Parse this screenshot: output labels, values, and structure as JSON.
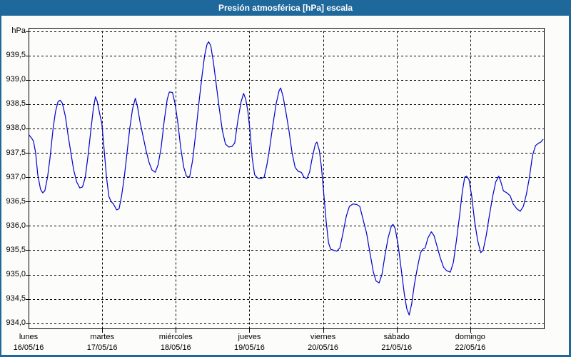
{
  "window": {
    "title": "Presión atmosférica [hPa] escala"
  },
  "colors": {
    "titlebar": "#1F689C",
    "window_border": "#1F689C",
    "background": "#FCFDFA",
    "grid": "#000000",
    "frame": "#000000",
    "line": "#0000CD",
    "text": "#000000",
    "title_text": "#FFFFFF"
  },
  "chart_data": {
    "type": "line",
    "title": "Presión atmosférica [hPa] escala",
    "ylabel": "hPa",
    "ylim": [
      934.0,
      940.0
    ],
    "ytick_step": 0.5,
    "grid": "dashed",
    "legend_position": "none",
    "yticks": [
      {
        "value": 940.0,
        "label": "hPa"
      },
      {
        "value": 939.5,
        "label": "939,5"
      },
      {
        "value": 939.0,
        "label": "939,0"
      },
      {
        "value": 938.5,
        "label": "938,5"
      },
      {
        "value": 938.0,
        "label": "938,0"
      },
      {
        "value": 937.5,
        "label": "937,5"
      },
      {
        "value": 937.0,
        "label": "937,0"
      },
      {
        "value": 936.5,
        "label": "936,5"
      },
      {
        "value": 936.0,
        "label": "936,0"
      },
      {
        "value": 935.5,
        "label": "935,5"
      },
      {
        "value": 935.0,
        "label": "935,0"
      },
      {
        "value": 934.5,
        "label": "934,5"
      },
      {
        "value": 934.0,
        "label": "934,0"
      }
    ],
    "x_axis": {
      "total_hours": 168,
      "days": [
        {
          "name": "lunes",
          "date": "16/05/16"
        },
        {
          "name": "martes",
          "date": "17/05/16"
        },
        {
          "name": "miércoles",
          "date": "18/05/16"
        },
        {
          "name": "jueves",
          "date": "19/05/16"
        },
        {
          "name": "viernes",
          "date": "20/05/16"
        },
        {
          "name": "sábado",
          "date": "21/05/16"
        },
        {
          "name": "domingo",
          "date": "22/05/16"
        }
      ]
    },
    "series": [
      {
        "name": "Presión atmosférica [hPa]",
        "color": "#0000CD",
        "points_hours_hpa": [
          [
            0,
            937.88
          ],
          [
            1,
            937.8
          ],
          [
            1.6,
            937.74
          ],
          [
            2.3,
            937.5
          ],
          [
            3,
            937.05
          ],
          [
            3.9,
            936.75
          ],
          [
            4.6,
            936.68
          ],
          [
            5.3,
            936.72
          ],
          [
            6.2,
            937.0
          ],
          [
            7,
            937.4
          ],
          [
            8,
            938.0
          ],
          [
            8.8,
            938.35
          ],
          [
            9.6,
            938.55
          ],
          [
            10.3,
            938.58
          ],
          [
            11,
            938.52
          ],
          [
            12,
            938.25
          ],
          [
            12.8,
            937.9
          ],
          [
            13.8,
            937.5
          ],
          [
            14.7,
            937.15
          ],
          [
            15.7,
            936.9
          ],
          [
            16.7,
            936.78
          ],
          [
            17.6,
            936.8
          ],
          [
            18.5,
            937.0
          ],
          [
            19.4,
            937.45
          ],
          [
            20.3,
            937.95
          ],
          [
            21.1,
            938.4
          ],
          [
            21.8,
            938.65
          ],
          [
            22.4,
            938.55
          ],
          [
            23.2,
            938.3
          ],
          [
            23.9,
            938.1
          ],
          [
            24.6,
            937.6
          ],
          [
            25.4,
            937.0
          ],
          [
            26.2,
            936.6
          ],
          [
            26.9,
            936.5
          ],
          [
            27.7,
            936.45
          ],
          [
            28.7,
            936.33
          ],
          [
            29.5,
            936.35
          ],
          [
            30.3,
            936.6
          ],
          [
            31.2,
            937.0
          ],
          [
            32.1,
            937.5
          ],
          [
            33,
            938.0
          ],
          [
            33.9,
            938.4
          ],
          [
            34.8,
            938.62
          ],
          [
            35.5,
            938.45
          ],
          [
            36.3,
            938.15
          ],
          [
            37.3,
            937.85
          ],
          [
            38.3,
            937.55
          ],
          [
            39.3,
            937.3
          ],
          [
            40.2,
            937.15
          ],
          [
            41.3,
            937.1
          ],
          [
            42.2,
            937.25
          ],
          [
            43.2,
            937.6
          ],
          [
            44.2,
            938.15
          ],
          [
            45.2,
            938.6
          ],
          [
            45.9,
            938.75
          ],
          [
            46.9,
            938.74
          ],
          [
            47.8,
            938.5
          ],
          [
            48.7,
            938.1
          ],
          [
            49.6,
            937.6
          ],
          [
            50.6,
            937.2
          ],
          [
            51.5,
            937.02
          ],
          [
            52.5,
            937.0
          ],
          [
            53.5,
            937.35
          ],
          [
            54.5,
            937.9
          ],
          [
            55.5,
            938.5
          ],
          [
            56.5,
            939.05
          ],
          [
            57.4,
            939.5
          ],
          [
            58.2,
            939.73
          ],
          [
            58.7,
            939.78
          ],
          [
            59.4,
            939.7
          ],
          [
            60.3,
            939.35
          ],
          [
            61.2,
            938.9
          ],
          [
            62.2,
            938.4
          ],
          [
            63.2,
            937.95
          ],
          [
            64.2,
            937.68
          ],
          [
            65.3,
            937.62
          ],
          [
            66.3,
            937.63
          ],
          [
            67.2,
            937.7
          ],
          [
            68.2,
            938.15
          ],
          [
            69.3,
            938.55
          ],
          [
            70.1,
            938.72
          ],
          [
            70.8,
            938.6
          ],
          [
            71.5,
            938.35
          ],
          [
            72.2,
            937.95
          ],
          [
            72.9,
            937.4
          ],
          [
            73.7,
            937.05
          ],
          [
            74.7,
            936.98
          ],
          [
            75.8,
            936.97
          ],
          [
            76.8,
            937.0
          ],
          [
            77.7,
            937.25
          ],
          [
            78.6,
            937.6
          ],
          [
            79.6,
            938.05
          ],
          [
            80.7,
            938.5
          ],
          [
            81.7,
            938.78
          ],
          [
            82.2,
            938.83
          ],
          [
            83,
            938.65
          ],
          [
            84,
            938.3
          ],
          [
            84.9,
            937.95
          ],
          [
            85.9,
            937.5
          ],
          [
            86.9,
            937.2
          ],
          [
            87.9,
            937.12
          ],
          [
            88.9,
            937.1
          ],
          [
            89.8,
            937.0
          ],
          [
            90.7,
            936.97
          ],
          [
            91.6,
            937.1
          ],
          [
            92.5,
            937.4
          ],
          [
            93.5,
            937.68
          ],
          [
            94,
            937.72
          ],
          [
            94.8,
            937.55
          ],
          [
            95.5,
            937.2
          ],
          [
            96.2,
            936.7
          ],
          [
            97,
            936.1
          ],
          [
            97.8,
            935.65
          ],
          [
            98.5,
            935.52
          ],
          [
            99.5,
            935.5
          ],
          [
            100.5,
            935.48
          ],
          [
            101.5,
            935.55
          ],
          [
            102.5,
            935.85
          ],
          [
            103.6,
            936.2
          ],
          [
            104.6,
            936.4
          ],
          [
            105.7,
            936.45
          ],
          [
            107,
            936.44
          ],
          [
            108,
            936.4
          ],
          [
            109,
            936.15
          ],
          [
            110.2,
            935.85
          ],
          [
            111.3,
            935.45
          ],
          [
            112.4,
            935.05
          ],
          [
            113.3,
            934.87
          ],
          [
            114.3,
            934.83
          ],
          [
            115.2,
            935.0
          ],
          [
            116.2,
            935.4
          ],
          [
            117.2,
            935.75
          ],
          [
            118.3,
            936.0
          ],
          [
            118.8,
            936.03
          ],
          [
            119.5,
            935.95
          ],
          [
            120.5,
            935.6
          ],
          [
            121.5,
            935.1
          ],
          [
            122.5,
            934.6
          ],
          [
            123.3,
            934.3
          ],
          [
            124.1,
            934.17
          ],
          [
            124.9,
            934.4
          ],
          [
            125.8,
            934.8
          ],
          [
            126.8,
            935.15
          ],
          [
            127.8,
            935.45
          ],
          [
            128.5,
            935.52
          ],
          [
            129.3,
            935.55
          ],
          [
            130.2,
            935.75
          ],
          [
            131.3,
            935.88
          ],
          [
            132.2,
            935.8
          ],
          [
            133.1,
            935.6
          ],
          [
            134.2,
            935.35
          ],
          [
            135.3,
            935.15
          ],
          [
            136.3,
            935.08
          ],
          [
            137.5,
            935.05
          ],
          [
            138.5,
            935.25
          ],
          [
            139.5,
            935.7
          ],
          [
            140.5,
            936.2
          ],
          [
            141.4,
            936.7
          ],
          [
            142.2,
            937.0
          ],
          [
            142.8,
            937.02
          ],
          [
            143.6,
            936.95
          ],
          [
            144.5,
            936.6
          ],
          [
            145.4,
            936.1
          ],
          [
            146.4,
            935.7
          ],
          [
            147.4,
            935.45
          ],
          [
            148.2,
            935.5
          ],
          [
            149.2,
            935.8
          ],
          [
            150.2,
            936.2
          ],
          [
            151.3,
            936.6
          ],
          [
            152.3,
            936.9
          ],
          [
            153.3,
            937.02
          ],
          [
            154,
            936.9
          ],
          [
            154.8,
            936.72
          ],
          [
            155.9,
            936.68
          ],
          [
            157,
            936.62
          ],
          [
            158,
            936.45
          ],
          [
            159.2,
            936.35
          ],
          [
            160.3,
            936.3
          ],
          [
            161.3,
            936.4
          ],
          [
            162.3,
            936.65
          ],
          [
            163.3,
            937.0
          ],
          [
            164.3,
            937.45
          ],
          [
            165.3,
            937.65
          ],
          [
            166.3,
            937.7
          ],
          [
            167,
            937.72
          ],
          [
            167.8,
            937.78
          ]
        ]
      }
    ]
  }
}
